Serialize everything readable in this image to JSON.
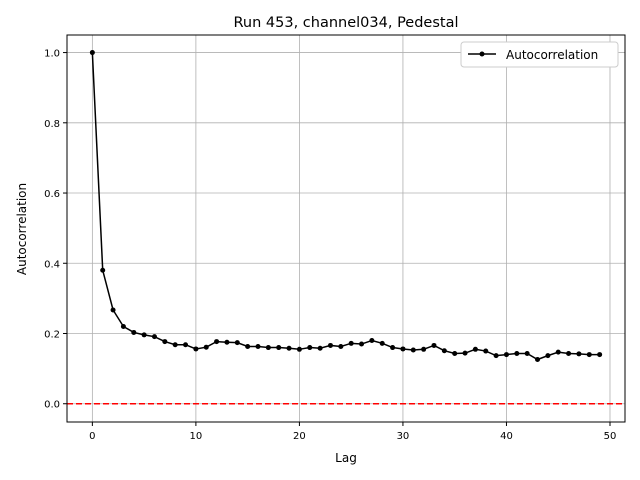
{
  "chart_data": {
    "type": "line",
    "title": "Run 453, channel034, Pedestal",
    "xlabel": "Lag",
    "ylabel": "Autocorrelation",
    "xlim": [
      -2.45,
      51.45
    ],
    "ylim": [
      -0.052,
      1.05
    ],
    "xticks": [
      0,
      10,
      20,
      30,
      40,
      50
    ],
    "yticks": [
      0.0,
      0.2,
      0.4,
      0.6,
      0.8,
      1.0
    ],
    "ytick_labels": [
      "0.0",
      "0.2",
      "0.4",
      "0.6",
      "0.8",
      "1.0"
    ],
    "grid": true,
    "legend": "top-right",
    "series": [
      {
        "name": "Autocorrelation",
        "color": "#000000",
        "marker": "circle",
        "x": [
          0,
          1,
          2,
          3,
          4,
          5,
          6,
          7,
          8,
          9,
          10,
          11,
          12,
          13,
          14,
          15,
          16,
          17,
          18,
          19,
          20,
          21,
          22,
          23,
          24,
          25,
          26,
          27,
          28,
          29,
          30,
          31,
          32,
          33,
          34,
          35,
          36,
          37,
          38,
          39,
          40,
          41,
          42,
          43,
          44,
          45,
          46,
          47,
          48,
          49
        ],
        "values": [
          1.0,
          0.38,
          0.267,
          0.22,
          0.203,
          0.196,
          0.191,
          0.177,
          0.168,
          0.168,
          0.156,
          0.161,
          0.177,
          0.175,
          0.174,
          0.163,
          0.163,
          0.16,
          0.16,
          0.158,
          0.155,
          0.16,
          0.158,
          0.166,
          0.163,
          0.172,
          0.17,
          0.18,
          0.172,
          0.16,
          0.156,
          0.153,
          0.155,
          0.166,
          0.151,
          0.143,
          0.144,
          0.155,
          0.15,
          0.137,
          0.14,
          0.143,
          0.143,
          0.126,
          0.137,
          0.147,
          0.143,
          0.142,
          0.14,
          0.14
        ]
      }
    ],
    "reference_line": {
      "y": 0,
      "color": "#ff0000",
      "style": "dashed"
    }
  }
}
